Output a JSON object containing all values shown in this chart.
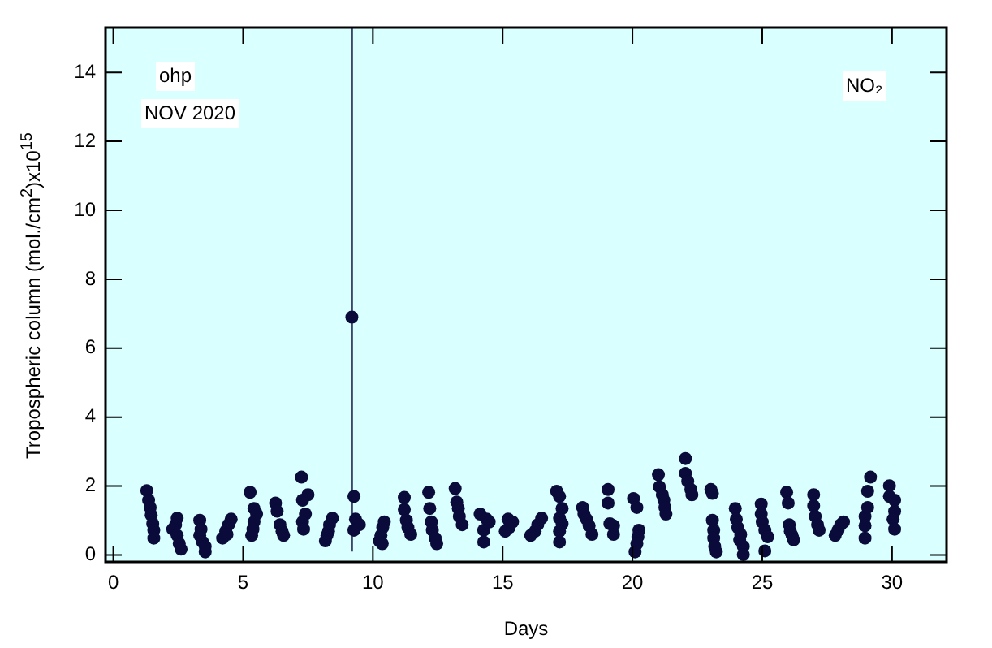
{
  "chart_data": {
    "type": "scatter",
    "xlabel": "Days",
    "ylabel": "Tropospheric column (mol./cm$^{2}$)x10$^{15}$",
    "annotations": [
      "ohp",
      "NOV 2020",
      "NO₂"
    ],
    "xlim": [
      -0.3,
      32.1
    ],
    "ylim": [
      -0.2,
      15.3
    ],
    "xticks": [
      0,
      5,
      10,
      15,
      20,
      25,
      30
    ],
    "yticks": [
      0,
      2,
      4,
      6,
      8,
      10,
      12,
      14
    ],
    "marker": "circle",
    "series": [
      {
        "color": "#0b0b3b",
        "x": [
          1.29,
          1.36,
          1.42,
          1.46,
          1.52,
          1.56,
          1.56,
          2.46,
          2.4,
          2.29,
          2.46,
          2.54,
          2.61,
          3.33,
          3.38,
          3.33,
          3.44,
          3.54,
          3.54,
          4.21,
          4.33,
          4.44,
          4.54,
          4.38,
          5.27,
          5.42,
          5.52,
          5.42,
          5.38,
          5.33,
          6.25,
          6.31,
          6.42,
          6.5,
          6.56,
          7.25,
          7.5,
          7.29,
          7.4,
          7.29,
          7.33,
          8.44,
          8.33,
          8.29,
          8.23,
          8.17,
          9.19,
          9.27,
          9.33,
          9.48,
          9.27,
          10.25,
          10.31,
          10.36,
          10.38,
          10.44,
          11.21,
          11.21,
          11.29,
          11.35,
          11.46,
          12.15,
          12.19,
          12.25,
          12.29,
          12.4,
          12.46,
          13.17,
          13.23,
          13.29,
          13.33,
          13.44,
          14.13,
          14.38,
          14.48,
          14.27,
          14.27,
          15.21,
          15.38,
          15.25,
          15.1,
          16.5,
          16.35,
          16.25,
          16.08,
          17.08,
          17.19,
          17.29,
          17.19,
          17.29,
          17.19,
          17.19,
          18.08,
          18.13,
          18.23,
          18.33,
          18.44,
          19.06,
          19.06,
          19.13,
          19.27,
          19.27,
          20.04,
          20.17,
          20.25,
          20.21,
          20.17,
          20.1,
          21.0,
          21.04,
          21.15,
          21.21,
          21.25,
          21.29,
          22.04,
          22.04,
          22.13,
          22.25,
          22.29,
          23.02,
          23.08,
          23.08,
          23.13,
          23.13,
          23.17,
          23.23,
          23.96,
          24.0,
          24.06,
          24.17,
          24.13,
          24.27,
          24.27,
          24.96,
          24.96,
          25.0,
          25.1,
          25.21,
          25.1,
          25.94,
          26.0,
          26.04,
          26.08,
          26.15,
          26.21,
          26.98,
          26.98,
          27.04,
          27.13,
          27.19,
          27.81,
          27.92,
          28.02,
          28.13,
          28.96,
          29.06,
          29.06,
          29.17,
          28.96,
          28.96,
          29.9,
          29.9,
          30.1,
          30.1,
          30.04,
          30.1
        ],
        "values": [
          1.87,
          1.59,
          1.38,
          1.16,
          0.91,
          0.72,
          0.49,
          1.07,
          0.88,
          0.75,
          0.57,
          0.33,
          0.17,
          1.01,
          0.75,
          0.57,
          0.38,
          0.25,
          0.09,
          0.49,
          0.69,
          0.88,
          1.04,
          0.6,
          1.82,
          1.35,
          1.19,
          0.96,
          0.75,
          0.57,
          1.51,
          1.27,
          0.88,
          0.69,
          0.57,
          2.26,
          1.75,
          1.59,
          1.19,
          0.96,
          0.75,
          1.07,
          0.88,
          0.69,
          0.57,
          0.41,
          6.9,
          1.7,
          1.04,
          0.88,
          0.72,
          0.41,
          0.57,
          0.33,
          0.8,
          0.96,
          1.67,
          1.32,
          1.01,
          0.8,
          0.6,
          1.82,
          1.35,
          0.96,
          0.72,
          0.49,
          0.33,
          1.93,
          1.54,
          1.35,
          1.12,
          0.88,
          1.19,
          1.04,
          0.96,
          0.72,
          0.38,
          1.04,
          0.96,
          0.8,
          0.69,
          1.07,
          0.88,
          0.69,
          0.57,
          1.85,
          1.7,
          1.35,
          1.07,
          0.91,
          0.69,
          0.38,
          1.38,
          1.19,
          1.04,
          0.85,
          0.6,
          1.9,
          1.51,
          0.91,
          0.85,
          0.6,
          1.64,
          1.38,
          0.72,
          0.53,
          0.33,
          0.09,
          2.33,
          1.98,
          1.75,
          1.59,
          1.38,
          1.19,
          2.8,
          2.37,
          2.14,
          1.9,
          1.75,
          1.9,
          1.79,
          1.01,
          0.72,
          0.49,
          0.25,
          0.09,
          1.35,
          1.04,
          0.8,
          0.6,
          0.44,
          0.25,
          0.01,
          1.48,
          1.19,
          0.96,
          0.72,
          0.53,
          0.12,
          1.82,
          1.51,
          0.88,
          0.69,
          0.57,
          0.44,
          1.75,
          1.43,
          1.12,
          0.88,
          0.72,
          0.57,
          0.72,
          0.88,
          0.96,
          1.12,
          1.38,
          1.85,
          2.26,
          0.85,
          0.49,
          2.01,
          1.7,
          1.59,
          1.27,
          1.04,
          0.75
        ],
        "errors": [
          null,
          null,
          null,
          null,
          null,
          null,
          null,
          null,
          null,
          null,
          null,
          null,
          null,
          null,
          null,
          null,
          null,
          null,
          null,
          null,
          null,
          null,
          null,
          null,
          null,
          null,
          null,
          null,
          null,
          null,
          null,
          null,
          null,
          null,
          null,
          null,
          null,
          null,
          null,
          null,
          null,
          null,
          null,
          null,
          null,
          null,
          [
            0.1,
            15.3
          ],
          null,
          null,
          null,
          null,
          null,
          null,
          null,
          null,
          null,
          null,
          null,
          null,
          null,
          null,
          null,
          null,
          null,
          null,
          null,
          null,
          null,
          null,
          null,
          null,
          null,
          null,
          null,
          null,
          null,
          null,
          null,
          null,
          null,
          null,
          null,
          null,
          null,
          null,
          null,
          null,
          null,
          null,
          null,
          null,
          null,
          null,
          null,
          null,
          null,
          null,
          null,
          null,
          null,
          null,
          null,
          null,
          null,
          null,
          null,
          null,
          null,
          null,
          null,
          null,
          null,
          null,
          null,
          null,
          null,
          null,
          null,
          null,
          null,
          null,
          null,
          null,
          null,
          null,
          null,
          null,
          null,
          null,
          null,
          null,
          null,
          null,
          null,
          null,
          null,
          null,
          null,
          null,
          null,
          null,
          null,
          null,
          null,
          null,
          null,
          null,
          null,
          null,
          null,
          null,
          null,
          null,
          null,
          null,
          null,
          null,
          null,
          null,
          null,
          null,
          null,
          null,
          null,
          null,
          null
        ]
      }
    ]
  }
}
